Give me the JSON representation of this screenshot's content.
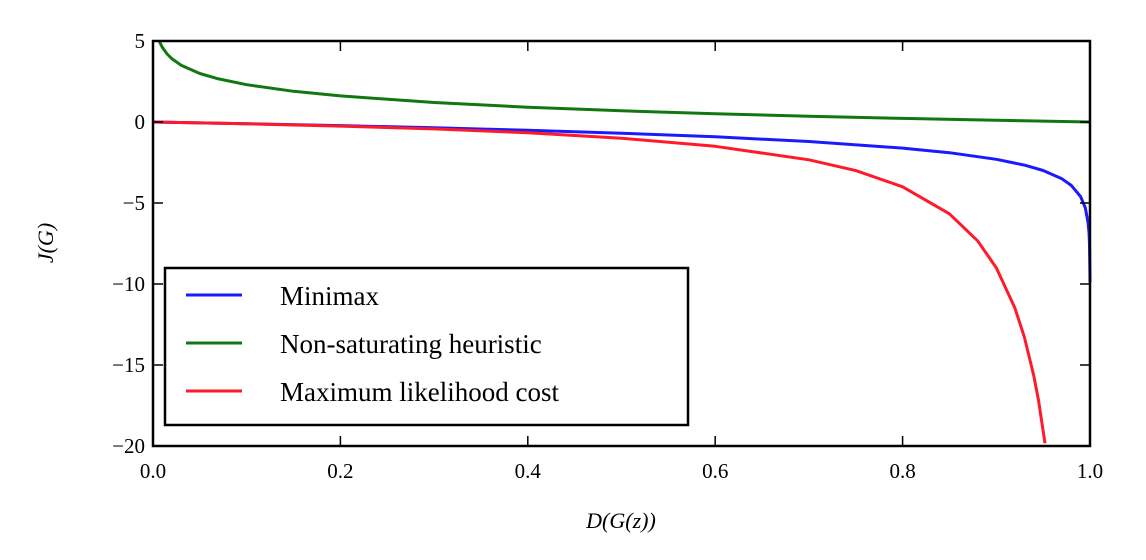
{
  "chart_data": {
    "type": "line",
    "title": "",
    "xlabel": "D(G(z))",
    "ylabel": "J(G)",
    "xlim": [
      0,
      1
    ],
    "ylim": [
      -20,
      5
    ],
    "xticks": [
      "0.0",
      "0.2",
      "0.4",
      "0.6",
      "0.8",
      "1.0"
    ],
    "xtick_values": [
      0,
      0.2,
      0.4,
      0.6,
      0.8,
      1.0
    ],
    "yticks": [
      "5",
      "0",
      "−5",
      "−10",
      "−15",
      "−20"
    ],
    "ytick_values": [
      5,
      0,
      -5,
      -10,
      -15,
      -20
    ],
    "grid": false,
    "legend_placement": "lower-left",
    "series": [
      {
        "name": "Minimax",
        "color": "#1a1aff",
        "x": [
          0,
          0.1,
          0.2,
          0.3,
          0.4,
          0.5,
          0.6,
          0.7,
          0.8,
          0.85,
          0.9,
          0.93,
          0.95,
          0.97,
          0.98,
          0.99,
          0.995,
          0.998,
          0.999,
          0.9995,
          0.9999,
          0.99995
        ],
        "y": [
          0,
          -0.105,
          -0.223,
          -0.357,
          -0.511,
          -0.693,
          -0.916,
          -1.204,
          -1.609,
          -1.897,
          -2.303,
          -2.659,
          -2.996,
          -3.507,
          -3.912,
          -4.605,
          -5.298,
          -6.215,
          -6.908,
          -7.601,
          -9.21,
          -9.903
        ]
      },
      {
        "name": "Non-saturating heuristic",
        "color": "#117711",
        "x": [
          0.0068,
          0.008,
          0.01,
          0.015,
          0.02,
          0.03,
          0.05,
          0.07,
          0.1,
          0.15,
          0.2,
          0.3,
          0.4,
          0.5,
          0.6,
          0.7,
          0.8,
          0.9,
          1.0
        ],
        "y": [
          4.99,
          4.828,
          4.605,
          4.2,
          3.912,
          3.507,
          2.996,
          2.659,
          2.303,
          1.897,
          1.609,
          1.204,
          0.916,
          0.693,
          0.511,
          0.357,
          0.223,
          0.105,
          0
        ]
      },
      {
        "name": "Maximum likelihood cost",
        "color": "#ff1a2a",
        "x": [
          0,
          0.1,
          0.2,
          0.3,
          0.4,
          0.5,
          0.6,
          0.7,
          0.75,
          0.8,
          0.85,
          0.88,
          0.9,
          0.92,
          0.93,
          0.94,
          0.945,
          0.952
        ],
        "y": [
          0,
          -0.111,
          -0.25,
          -0.429,
          -0.667,
          -1,
          -1.5,
          -2.333,
          -3,
          -4,
          -5.667,
          -7.333,
          -9,
          -11.5,
          -13.286,
          -15.667,
          -17.182,
          -19.833
        ]
      }
    ]
  }
}
